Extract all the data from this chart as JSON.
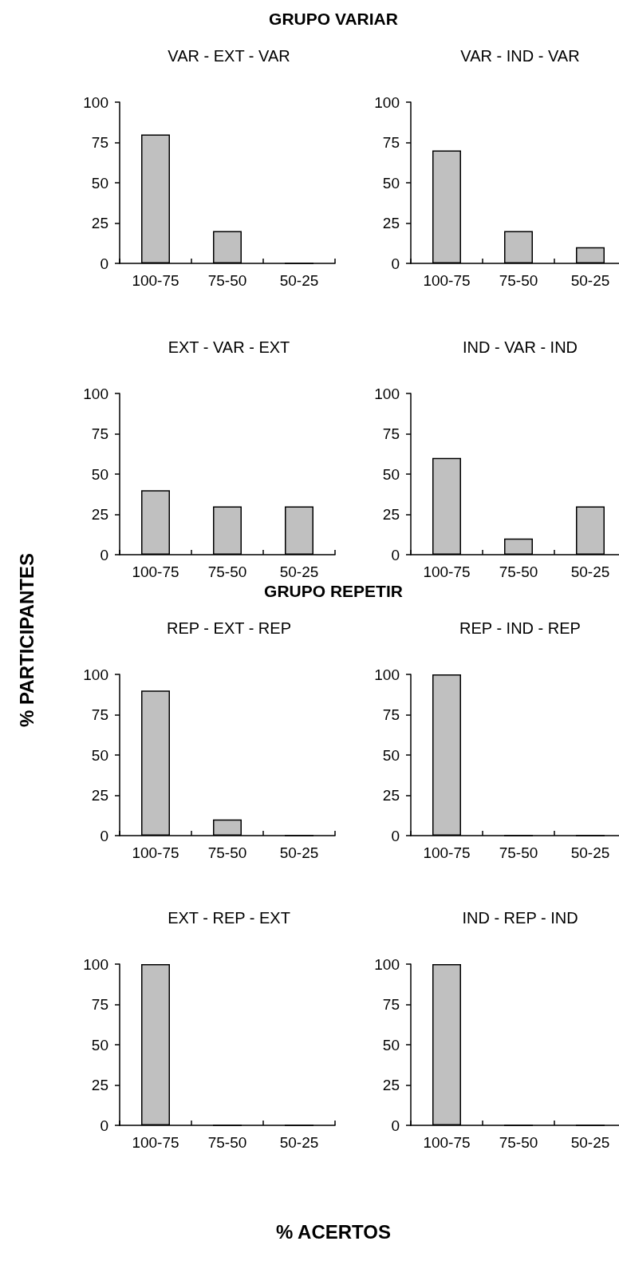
{
  "chart_data": [
    {
      "type": "bar",
      "subtitle": "GRUPO VARIAR",
      "title": "VAR - EXT - VAR",
      "categories": [
        "100-75",
        "75-50",
        "50-25"
      ],
      "values": [
        80,
        20,
        0
      ],
      "color": "#c0c0c0",
      "ylim": [
        0,
        100
      ],
      "yticks": [
        0,
        25,
        50,
        75,
        100
      ],
      "grid": false
    },
    {
      "type": "bar",
      "title": "VAR - IND - VAR",
      "categories": [
        "100-75",
        "75-50",
        "50-25"
      ],
      "values": [
        70,
        20,
        10
      ],
      "color": "#c0c0c0",
      "ylim": [
        0,
        100
      ],
      "yticks": [
        0,
        25,
        50,
        75,
        100
      ],
      "grid": false
    },
    {
      "type": "bar",
      "title": "EXT - VAR - EXT",
      "categories": [
        "100-75",
        "75-50",
        "50-25"
      ],
      "values": [
        40,
        30,
        30
      ],
      "color": "#c0c0c0",
      "ylim": [
        0,
        100
      ],
      "yticks": [
        0,
        25,
        50,
        75,
        100
      ],
      "grid": false
    },
    {
      "type": "bar",
      "title": "IND - VAR - IND",
      "categories": [
        "100-75",
        "75-50",
        "50-25"
      ],
      "values": [
        60,
        10,
        30
      ],
      "color": "#c0c0c0",
      "ylim": [
        0,
        100
      ],
      "yticks": [
        0,
        25,
        50,
        75,
        100
      ],
      "grid": false
    },
    {
      "type": "bar",
      "subtitle": "GRUPO REPETIR",
      "title": "REP - EXT - REP",
      "ylabel": "% PARTICIPANTES",
      "categories": [
        "100-75",
        "75-50",
        "50-25"
      ],
      "values": [
        90,
        10,
        0
      ],
      "color": "#c0c0c0",
      "ylim": [
        0,
        100
      ],
      "yticks": [
        0,
        25,
        50,
        75,
        100
      ],
      "grid": false
    },
    {
      "type": "bar",
      "title": "REP - IND - REP",
      "categories": [
        "100-75",
        "75-50",
        "50-25"
      ],
      "values": [
        100,
        0,
        0
      ],
      "color": "#c0c0c0",
      "ylim": [
        0,
        100
      ],
      "yticks": [
        0,
        25,
        50,
        75,
        100
      ],
      "grid": false
    },
    {
      "type": "bar",
      "title": "EXT - REP - EXT",
      "categories": [
        "100-75",
        "75-50",
        "50-25"
      ],
      "values": [
        100,
        0,
        0
      ],
      "color": "#c0c0c0",
      "ylim": [
        0,
        100
      ],
      "yticks": [
        0,
        25,
        50,
        75,
        100
      ],
      "grid": false
    },
    {
      "type": "bar",
      "title": "IND - REP - IND",
      "xlabel": "% ACERTOS",
      "categories": [
        "100-75",
        "75-50",
        "50-25"
      ],
      "values": [
        100,
        0,
        0
      ],
      "color": "#c0c0c0",
      "ylim": [
        0,
        100
      ],
      "yticks": [
        0,
        25,
        50,
        75,
        100
      ],
      "grid": false
    }
  ]
}
